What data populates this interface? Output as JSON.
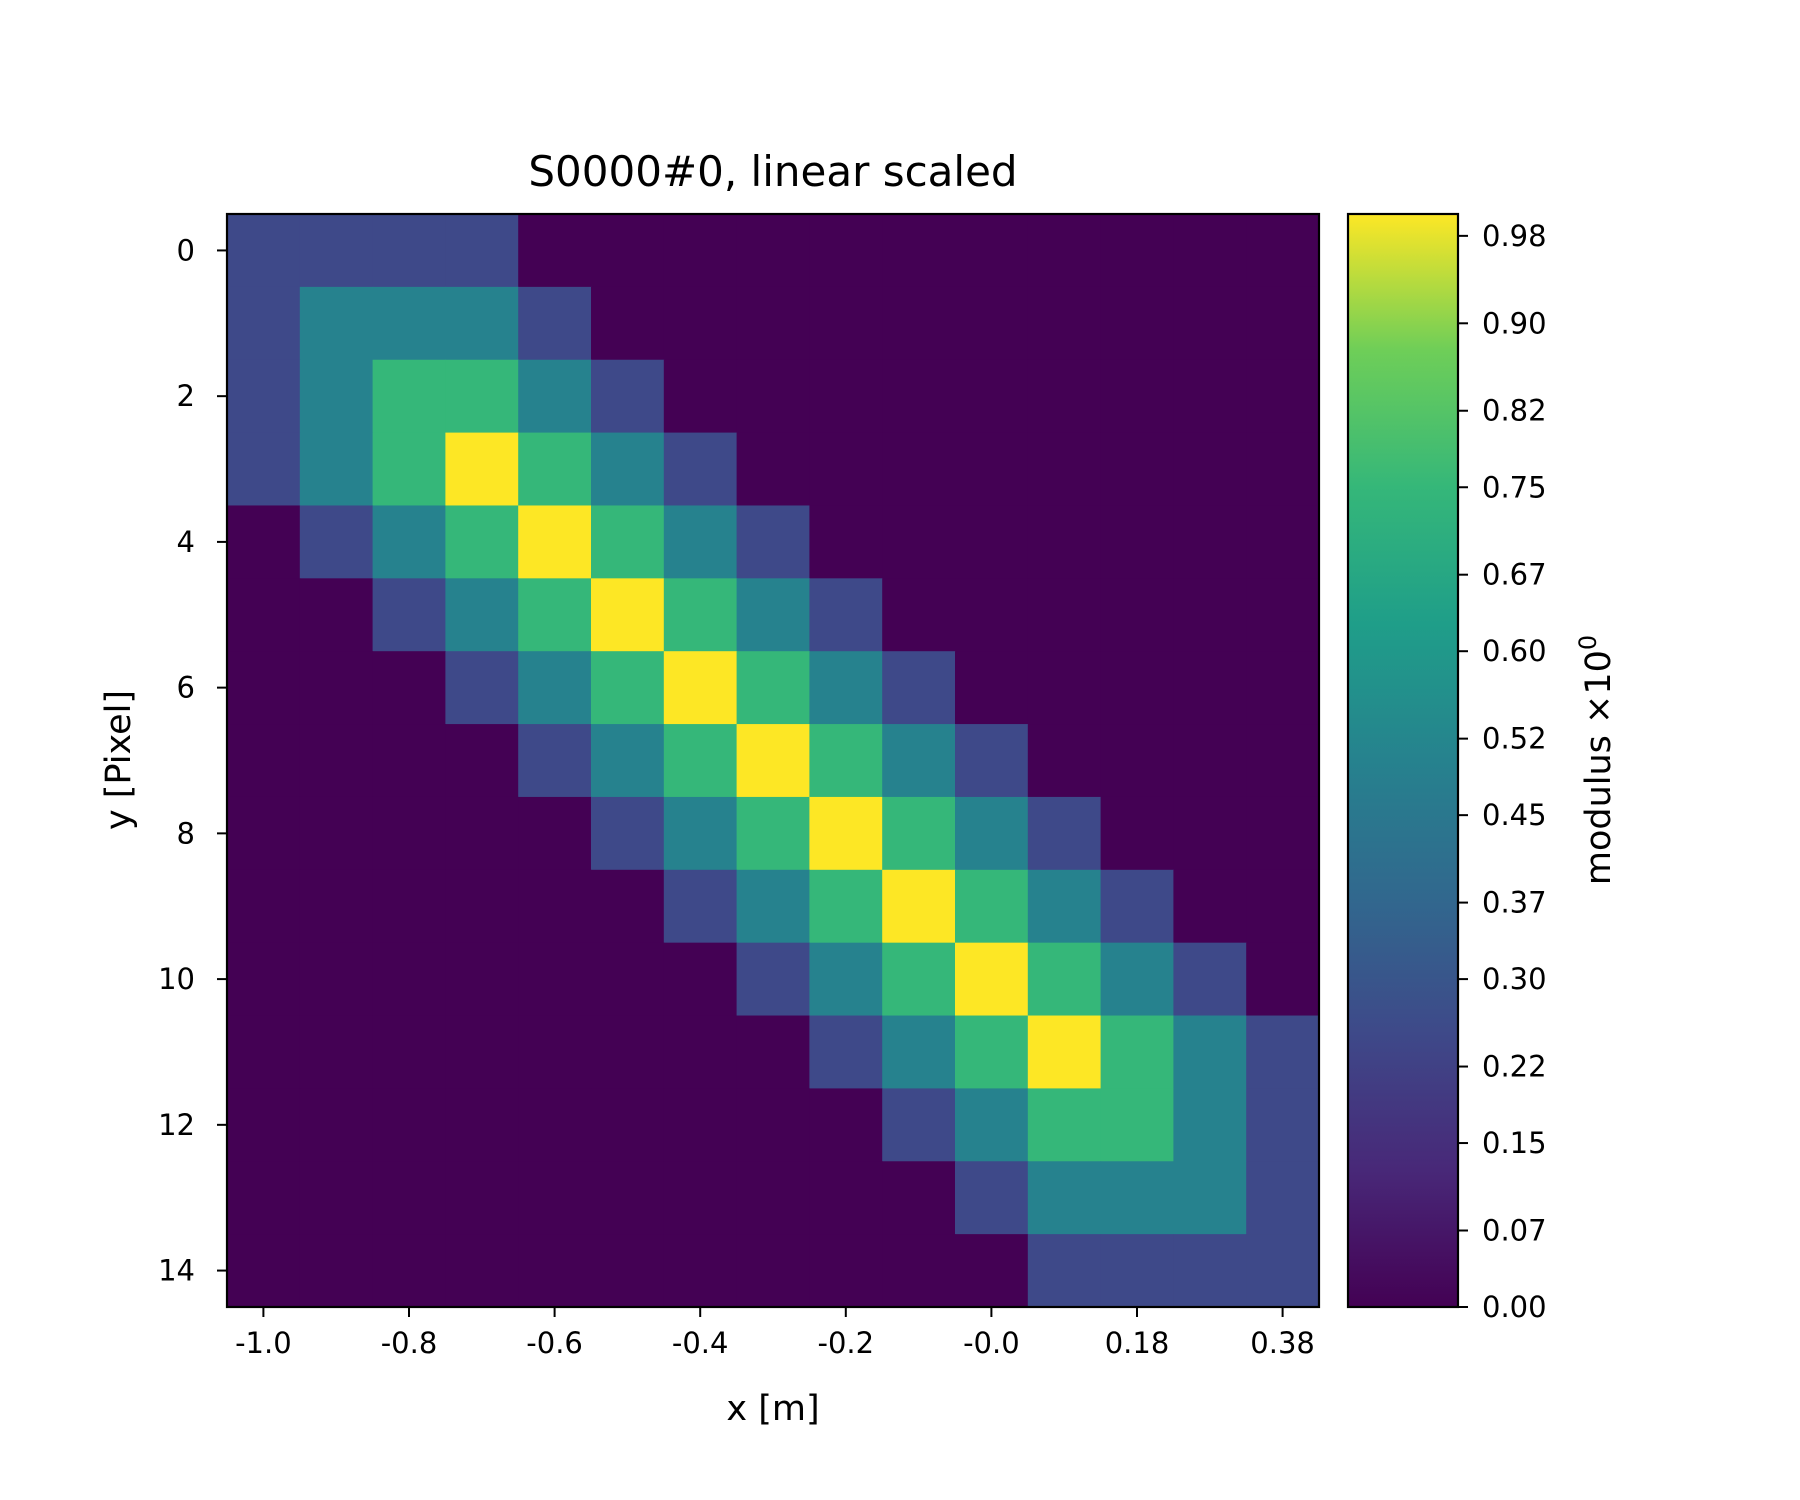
{
  "chart_data": {
    "type": "heatmap",
    "title": "S0000#0, linear scaled",
    "xlabel": "x [m]",
    "ylabel": "y [Pixel]",
    "colorbar_label": "modulus ×10",
    "colorbar_label_exponent": "0",
    "colormap": "viridis",
    "x_tick_labels": [
      "-1.0",
      "-0.8",
      "-0.6",
      "-0.4",
      "-0.2",
      "-0.0",
      "0.18",
      "0.38"
    ],
    "x_tick_columns": [
      0,
      2,
      4,
      6,
      8,
      10,
      12,
      14
    ],
    "y_tick_labels": [
      "0",
      "2",
      "4",
      "6",
      "8",
      "10",
      "12",
      "14"
    ],
    "y_tick_rows": [
      0,
      2,
      4,
      6,
      8,
      10,
      12,
      14
    ],
    "colorbar_ticks": [
      "0.00",
      "0.07",
      "0.15",
      "0.22",
      "0.30",
      "0.37",
      "0.45",
      "0.52",
      "0.60",
      "0.67",
      "0.75",
      "0.82",
      "0.90",
      "0.98"
    ],
    "colorbar_range": [
      0,
      1
    ],
    "rows": 15,
    "cols": 15,
    "values": [
      [
        0.25,
        0.25,
        0.25,
        0.25,
        0,
        0,
        0,
        0,
        0,
        0,
        0,
        0,
        0,
        0,
        0
      ],
      [
        0.25,
        0.5,
        0.5,
        0.5,
        0.25,
        0,
        0,
        0,
        0,
        0,
        0,
        0,
        0,
        0,
        0
      ],
      [
        0.25,
        0.5,
        0.75,
        0.75,
        0.5,
        0.25,
        0,
        0,
        0,
        0,
        0,
        0,
        0,
        0,
        0
      ],
      [
        0.25,
        0.5,
        0.75,
        1,
        0.75,
        0.5,
        0.25,
        0,
        0,
        0,
        0,
        0,
        0,
        0,
        0
      ],
      [
        0,
        0.25,
        0.5,
        0.75,
        1,
        0.75,
        0.5,
        0.25,
        0,
        0,
        0,
        0,
        0,
        0,
        0
      ],
      [
        0,
        0,
        0.25,
        0.5,
        0.75,
        1,
        0.75,
        0.5,
        0.25,
        0,
        0,
        0,
        0,
        0,
        0
      ],
      [
        0,
        0,
        0,
        0.25,
        0.5,
        0.75,
        1,
        0.75,
        0.5,
        0.25,
        0,
        0,
        0,
        0,
        0
      ],
      [
        0,
        0,
        0,
        0,
        0.25,
        0.5,
        0.75,
        1,
        0.75,
        0.5,
        0.25,
        0,
        0,
        0,
        0
      ],
      [
        0,
        0,
        0,
        0,
        0,
        0.25,
        0.5,
        0.75,
        1,
        0.75,
        0.5,
        0.25,
        0,
        0,
        0
      ],
      [
        0,
        0,
        0,
        0,
        0,
        0,
        0.25,
        0.5,
        0.75,
        1,
        0.75,
        0.5,
        0.25,
        0,
        0
      ],
      [
        0,
        0,
        0,
        0,
        0,
        0,
        0,
        0.25,
        0.5,
        0.75,
        1,
        0.75,
        0.5,
        0.25,
        0
      ],
      [
        0,
        0,
        0,
        0,
        0,
        0,
        0,
        0,
        0.25,
        0.5,
        0.75,
        1,
        0.75,
        0.5,
        0.25
      ],
      [
        0,
        0,
        0,
        0,
        0,
        0,
        0,
        0,
        0,
        0.25,
        0.5,
        0.75,
        0.75,
        0.5,
        0.25
      ],
      [
        0,
        0,
        0,
        0,
        0,
        0,
        0,
        0,
        0,
        0,
        0.25,
        0.5,
        0.5,
        0.5,
        0.25
      ],
      [
        0,
        0,
        0,
        0,
        0,
        0,
        0,
        0,
        0,
        0,
        0,
        0.25,
        0.25,
        0.25,
        0.25
      ]
    ]
  }
}
